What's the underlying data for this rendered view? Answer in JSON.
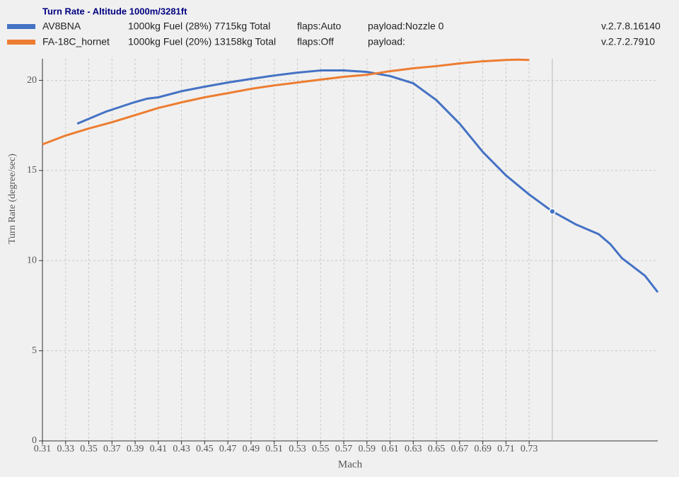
{
  "chart_data": {
    "type": "line",
    "title": "Turn Rate - Altitude 1000m/3281ft",
    "x_label": "Mach",
    "y_label": "Turn Rate (degree/sec)",
    "series": [
      {
        "name": "AV8BNA",
        "color": "#4472c4",
        "fuel": "1000kg Fuel (28%) 7715kg Total",
        "flaps": "flaps:Auto",
        "payload": "payload:Nozzle 0",
        "version": "v.2.7.8.16140",
        "x": [
          0.34,
          0.365,
          0.39,
          0.4,
          0.41,
          0.43,
          0.45,
          0.47,
          0.49,
          0.51,
          0.53,
          0.55,
          0.57,
          0.59,
          0.61,
          0.63,
          0.65,
          0.67,
          0.69,
          0.71,
          0.73,
          0.75,
          0.77,
          0.79,
          0.8,
          0.81,
          0.83,
          0.841
        ],
        "values": [
          17.6,
          18.27,
          18.8,
          18.98,
          19.06,
          19.4,
          19.65,
          19.88,
          20.08,
          20.27,
          20.43,
          20.55,
          20.55,
          20.47,
          20.24,
          19.84,
          18.9,
          17.6,
          16.03,
          14.73,
          13.67,
          12.73,
          12.02,
          11.47,
          10.92,
          10.14,
          9.16,
          8.25
        ]
      },
      {
        "name": "FA-18C_hornet",
        "color": "#ed7d31",
        "fuel": "1000kg Fuel (20%) 13158kg Total",
        "flaps": "flaps:Off",
        "payload": "payload:",
        "version": "v.2.7.2.7910",
        "x": [
          0.31,
          0.33,
          0.35,
          0.37,
          0.39,
          0.41,
          0.43,
          0.45,
          0.47,
          0.49,
          0.51,
          0.53,
          0.55,
          0.57,
          0.59,
          0.61,
          0.63,
          0.65,
          0.67,
          0.69,
          0.71,
          0.72,
          0.73
        ],
        "values": [
          16.45,
          16.94,
          17.33,
          17.68,
          18.07,
          18.47,
          18.78,
          19.06,
          19.29,
          19.53,
          19.72,
          19.88,
          20.04,
          20.2,
          20.31,
          20.51,
          20.67,
          20.79,
          20.94,
          21.06,
          21.13,
          21.15,
          21.13
        ]
      }
    ],
    "crosshair_x": 0.75,
    "xlim": [
      0.31,
      0.841
    ],
    "ylim": [
      0,
      21.2
    ],
    "xticks": [
      0.31,
      0.33,
      0.35,
      0.37,
      0.39,
      0.41,
      0.43,
      0.45,
      0.47,
      0.49,
      0.51,
      0.53,
      0.55,
      0.57,
      0.59,
      0.61,
      0.63,
      0.65,
      0.67,
      0.69,
      0.71,
      0.73
    ],
    "yticks": [
      0,
      5,
      10,
      15,
      20
    ],
    "grid": true
  }
}
